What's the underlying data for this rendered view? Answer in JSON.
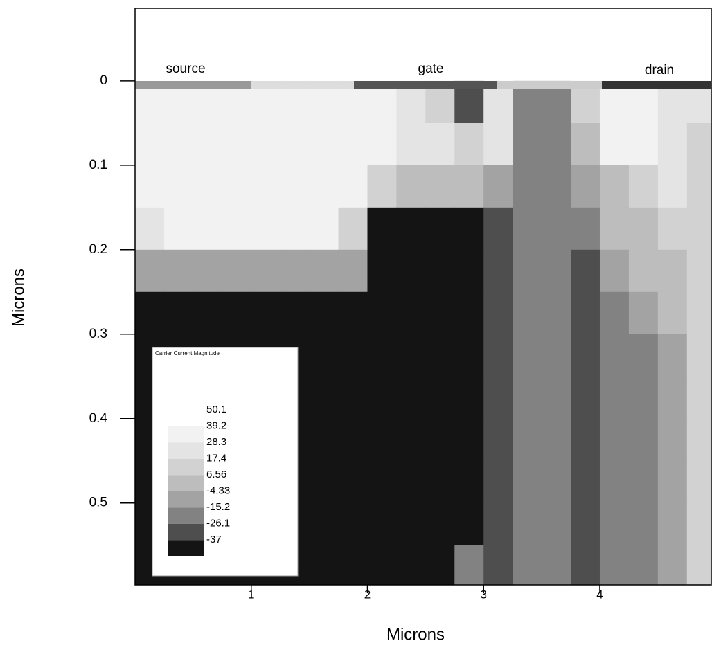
{
  "chart_data": {
    "type": "contour",
    "x_label": "Microns",
    "y_label": "Microns",
    "annotations": [
      "source",
      "gate",
      "drain"
    ],
    "legend_title": "Carrier Current Magnitude",
    "levels": [
      50.1,
      39.2,
      28.3,
      17.4,
      6.56,
      -4.33,
      -15.2,
      -26.1,
      -37
    ],
    "colors": [
      "#ffffff",
      "#f2f2f2",
      "#e4e4e4",
      "#d2d2d2",
      "#bdbdbd",
      "#a3a3a3",
      "#828282",
      "#4e4e4e",
      "#141414"
    ],
    "xlim": [
      0,
      4.96
    ],
    "ylim": [
      -0.086,
      0.597
    ],
    "y_inverted": true,
    "xticks": [
      1,
      2,
      3,
      4
    ],
    "yticks": [
      0,
      0.1,
      0.2,
      0.3,
      0.4,
      0.5
    ],
    "x": [
      0.125,
      0.375,
      0.625,
      0.875,
      1.125,
      1.375,
      1.625,
      1.875,
      2.125,
      2.375,
      2.625,
      2.875,
      3.125,
      3.375,
      3.625,
      3.875,
      4.125,
      4.375,
      4.625,
      4.875
    ],
    "y": [
      0.025,
      0.075,
      0.125,
      0.175,
      0.225,
      0.275,
      0.325,
      0.375,
      0.425,
      0.475,
      0.525,
      0.575
    ],
    "z": [
      [
        48,
        48,
        48,
        48,
        48,
        48,
        48,
        48,
        40,
        30,
        20,
        -20,
        30,
        -5,
        -5,
        20,
        45,
        45,
        30,
        30
      ],
      [
        48,
        48,
        48,
        48,
        48,
        48,
        48,
        48,
        45,
        35,
        30,
        25,
        35,
        -5,
        -5,
        10,
        45,
        40,
        30,
        25
      ],
      [
        48,
        48,
        48,
        48,
        48,
        48,
        48,
        48,
        20,
        15,
        10,
        10,
        5,
        -5,
        -5,
        0,
        15,
        25,
        30,
        25
      ],
      [
        30,
        45,
        45,
        45,
        45,
        45,
        45,
        20,
        -40,
        -40,
        -30,
        -30,
        -20,
        -5,
        -5,
        -5,
        10,
        15,
        20,
        20
      ],
      [
        5,
        5,
        5,
        5,
        5,
        5,
        5,
        0,
        -40,
        -40,
        -40,
        -40,
        -20,
        -5,
        -5,
        -20,
        0,
        10,
        15,
        20
      ],
      [
        -30,
        -30,
        -30,
        -30,
        -30,
        -30,
        -30,
        -30,
        -40,
        -40,
        -40,
        -40,
        -20,
        -5,
        -5,
        -20,
        -5,
        5,
        10,
        20
      ],
      [
        -40,
        -40,
        -40,
        -40,
        -40,
        -40,
        -40,
        -40,
        -40,
        -40,
        -40,
        -40,
        -20,
        -5,
        -5,
        -20,
        -5,
        -5,
        5,
        20
      ],
      [
        -40,
        -40,
        -40,
        -40,
        -40,
        -40,
        -40,
        -40,
        -40,
        -40,
        -40,
        -40,
        -20,
        -5,
        -5,
        -20,
        -5,
        -5,
        5,
        20
      ],
      [
        -40,
        -40,
        -40,
        -40,
        -40,
        -40,
        -40,
        -40,
        -40,
        -40,
        -40,
        -40,
        -20,
        -5,
        -5,
        -20,
        -5,
        -5,
        5,
        20
      ],
      [
        -40,
        -40,
        -40,
        -40,
        -40,
        -40,
        -40,
        -40,
        -40,
        -40,
        -40,
        -40,
        -20,
        -5,
        -5,
        -20,
        -5,
        -5,
        5,
        20
      ],
      [
        -40,
        -40,
        -40,
        -40,
        -40,
        -40,
        -40,
        -40,
        -40,
        -40,
        -40,
        -40,
        -20,
        -5,
        -5,
        -20,
        -5,
        -5,
        5,
        20
      ],
      [
        -40,
        -40,
        -40,
        -40,
        -40,
        -40,
        -40,
        -40,
        -40,
        -40,
        -40,
        -5,
        -20,
        -5,
        -5,
        -20,
        -5,
        -5,
        5,
        20
      ]
    ]
  }
}
